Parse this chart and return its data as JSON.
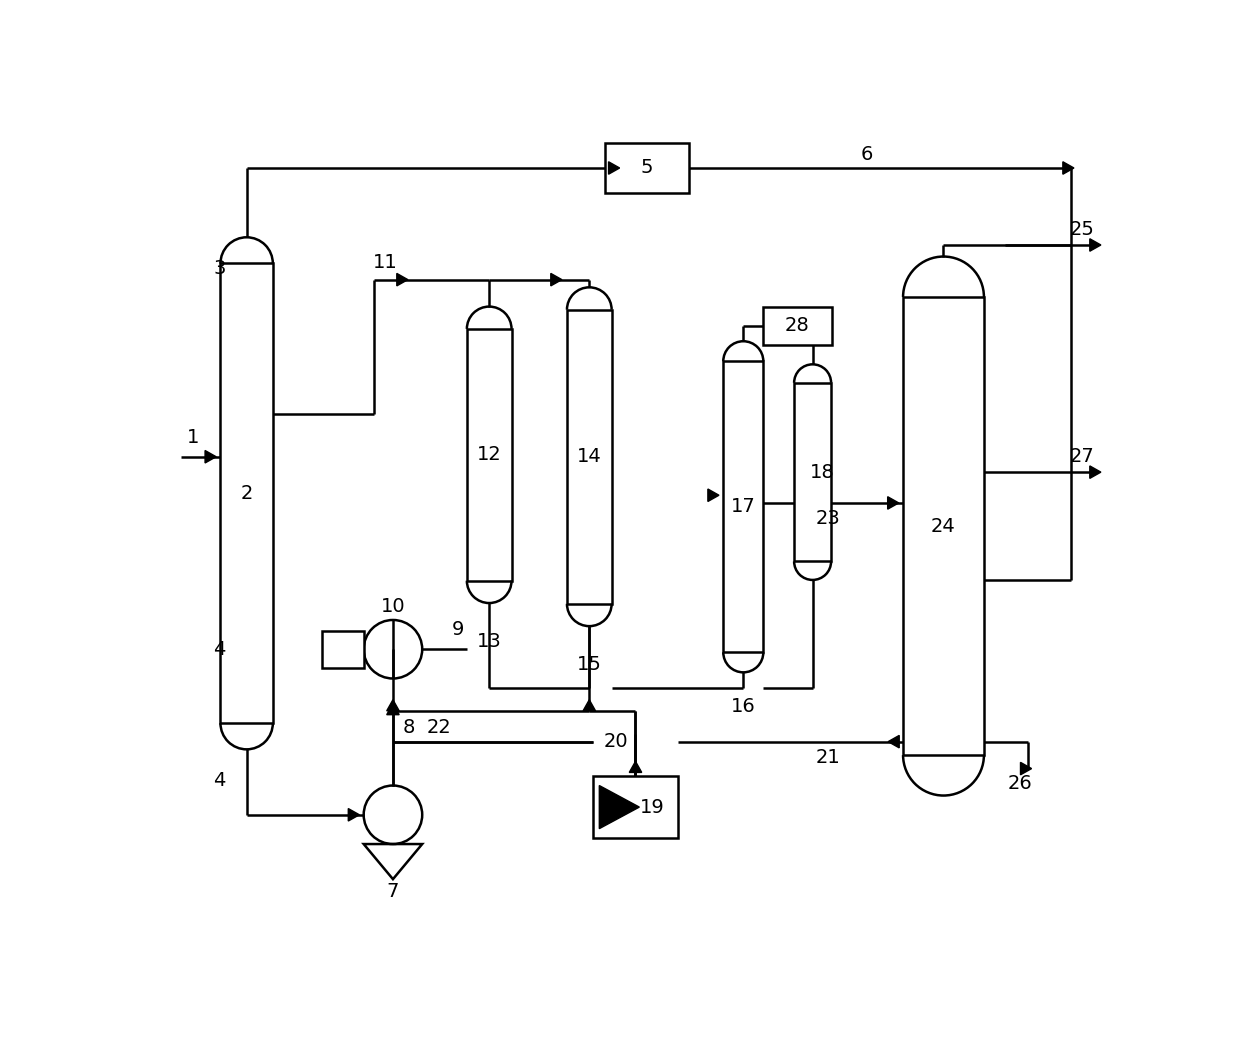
{
  "bg_color": "#ffffff",
  "line_color": "#000000",
  "fig_width": 12.4,
  "fig_height": 10.47
}
